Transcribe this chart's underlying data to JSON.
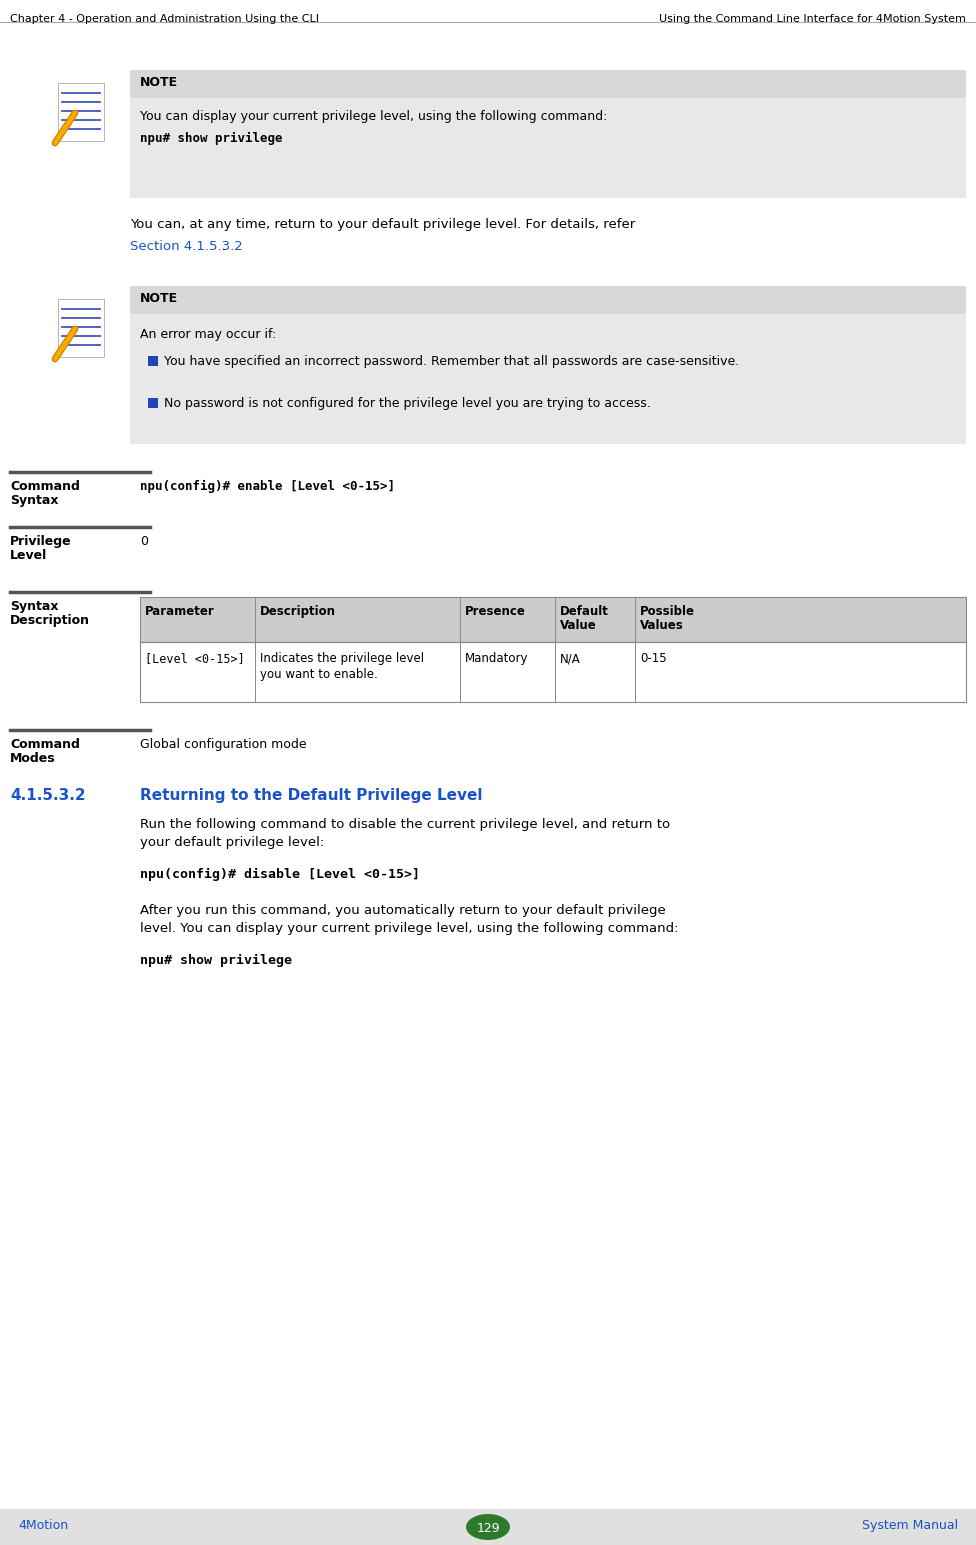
{
  "header_left": "Chapter 4 - Operation and Administration Using the CLI",
  "header_right": "Using the Command Line Interface for 4Motion System",
  "footer_left": "4Motion",
  "footer_page": "129",
  "footer_right": "System Manual",
  "note1_title": "NOTE",
  "note1_text1": "You can display your current privilege level, using the following command:",
  "note1_cmd": "npu# show privilege",
  "body1_line1": "You can, at any time, return to your default privilege level. For details, refer",
  "body1_link": "Section 4.1.5.3.2",
  "body1_link_suffix": ".",
  "note2_title": "NOTE",
  "note2_text": "An error may occur if:",
  "bullet1": "You have specified an incorrect password. Remember that all passwords are case-sensitive.",
  "bullet2": "No password is not configured for the privilege level you are trying to access.",
  "cmd_syntax_label1": "Command",
  "cmd_syntax_label2": "Syntax",
  "cmd_syntax_value": "npu(config)# enable [Level <0-15>]",
  "priv_label1": "Privilege",
  "priv_label2": "Level",
  "priv_value": "0",
  "syntax_desc_label1": "Syntax",
  "syntax_desc_label2": "Description",
  "table_headers": [
    "Parameter",
    "Description",
    "Presence",
    "Default\nValue",
    "Possible\nValues"
  ],
  "table_row1_col1": "[Level <0-15>]",
  "table_row1_col2a": "Indicates the privilege level",
  "table_row1_col2b": "you want to enable.",
  "table_row1_col3": "Mandatory",
  "table_row1_col4": "N/A",
  "table_row1_col5": "0-15",
  "cmd_modes_label1": "Command",
  "cmd_modes_label2": "Modes",
  "cmd_modes_value": "Global configuration mode",
  "section_num": "4.1.5.3.2",
  "section_title": "Returning to the Default Privilege Level",
  "section_body1": "Run the following command to disable the current privilege level, and return to",
  "section_body2": "your default privilege level:",
  "section_cmd1": "npu(config)# disable [Level <0-15>]",
  "section_body3": "After you run this command, you automatically return to your default privilege",
  "section_body4": "level. You can display your current privilege level, using the following command:",
  "section_cmd2": "npu# show privilege",
  "bg_note": "#e8e8e8",
  "bg_note_header": "#d8d8d8",
  "white": "#ffffff",
  "black": "#000000",
  "blue_link": "#1a52c7",
  "blue_section": "#1a52c7",
  "blue_bullet": "#2244bb",
  "separator_color": "#555555",
  "table_border": "#888888",
  "table_header_bg": "#cccccc",
  "green_ellipse": "#2d7a2d",
  "footer_bg": "#e0e0e0",
  "header_sep": "#aaaaaa"
}
